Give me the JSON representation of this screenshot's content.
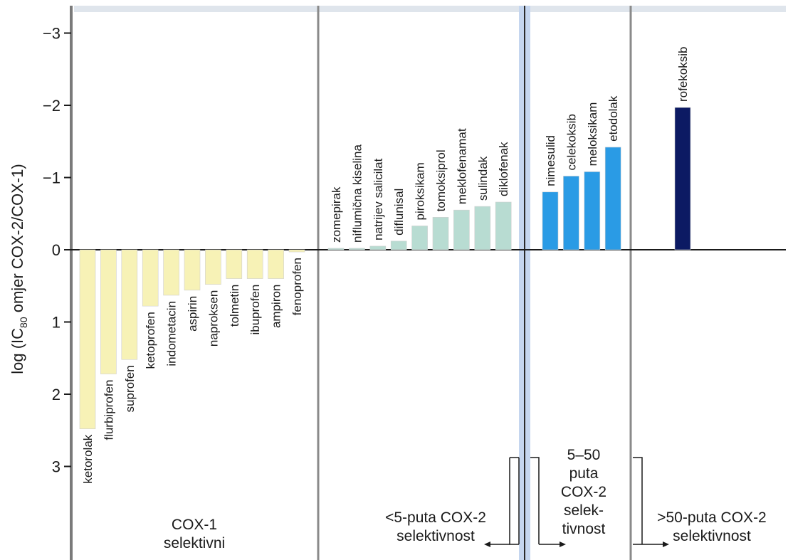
{
  "chart_data": {
    "type": "bar",
    "ylabel_main": "log (IC",
    "ylabel_sub": "80",
    "ylabel_rest": " omjer COX-2/COX-1)",
    "y_inverted": true,
    "ylim": [
      3.9,
      -3.3
    ],
    "yticks": [
      {
        "value": -3,
        "label": "−3"
      },
      {
        "value": -2,
        "label": "−2"
      },
      {
        "value": -1,
        "label": "−1"
      },
      {
        "value": 0,
        "label": "0"
      },
      {
        "value": 1,
        "label": "1"
      },
      {
        "value": 2,
        "label": "2"
      },
      {
        "value": 3,
        "label": "3"
      }
    ],
    "series": [
      {
        "color": "#f7f2b6",
        "values": [
          {
            "label": "ketorolak",
            "value": 2.48
          },
          {
            "label": "flurbiprofen",
            "value": 1.72
          },
          {
            "label": "suprofen",
            "value": 1.52
          },
          {
            "label": "ketoprofen",
            "value": 0.78
          },
          {
            "label": "indometacin",
            "value": 0.63
          },
          {
            "label": "aspirin",
            "value": 0.56
          },
          {
            "label": "naproksen",
            "value": 0.48
          },
          {
            "label": "tolmetin",
            "value": 0.4
          },
          {
            "label": "ibuprofen",
            "value": 0.4
          },
          {
            "label": "ampiron",
            "value": 0.4
          },
          {
            "label": "fenoprofen",
            "value": 0.03
          }
        ]
      },
      {
        "color": "#b8dcd2",
        "values": [
          {
            "label": "zomepirak",
            "value": -0.02
          },
          {
            "label": "niflumična kiselina",
            "value": -0.02
          },
          {
            "label": "natrijev salicilat",
            "value": -0.05
          },
          {
            "label": "diflunisal",
            "value": -0.12
          },
          {
            "label": "piroksikam",
            "value": -0.33
          },
          {
            "label": "tomoksiprol",
            "value": -0.45
          },
          {
            "label": "meklofenamat",
            "value": -0.55
          },
          {
            "label": "sulindak",
            "value": -0.6
          },
          {
            "label": "diklofenak",
            "value": -0.66
          }
        ]
      },
      {
        "color": "#2a9be5",
        "values": [
          {
            "label": "nimesulid",
            "value": -0.8
          },
          {
            "label": "celekoksib",
            "value": -1.02
          },
          {
            "label": "meloksikam",
            "value": -1.08
          },
          {
            "label": "etodolak",
            "value": -1.42
          }
        ]
      },
      {
        "color": "#0c1a63",
        "values": [
          {
            "label": "rofekoksib",
            "value": -1.97
          }
        ]
      }
    ],
    "groups": [
      {
        "lines": [
          "COX-1",
          "selektivni"
        ]
      },
      {
        "lines": [
          "<5-puta COX-2",
          "selektivnost"
        ]
      },
      {
        "lines": [
          "5–50",
          "puta",
          "COX-2",
          "selek-",
          "tivnost"
        ]
      },
      {
        "lines": [
          ">50-puta COX-2",
          "selektivnost"
        ]
      }
    ],
    "grid": false
  }
}
